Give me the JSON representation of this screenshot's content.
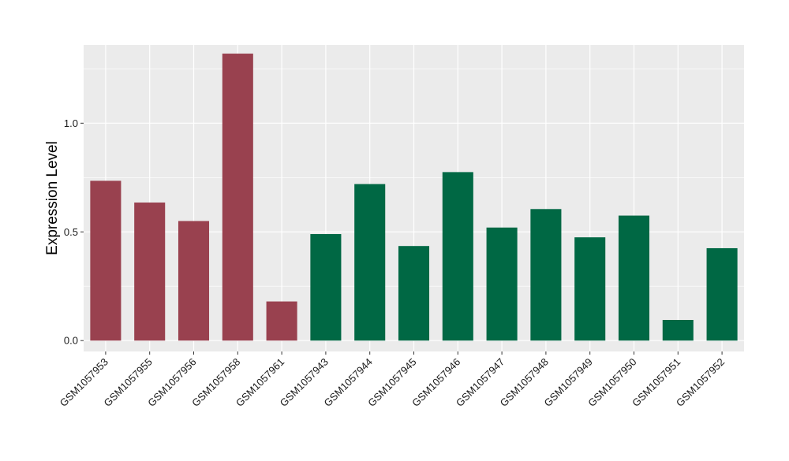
{
  "chart_data": {
    "type": "bar",
    "title": "",
    "xlabel": "",
    "ylabel": "Expression Level",
    "ylim": [
      -0.05,
      1.36
    ],
    "yticks": [
      0.0,
      0.5,
      1.0
    ],
    "ytick_labels": [
      "0.0",
      "0.5",
      "1.0"
    ],
    "grid": true,
    "legend": "none",
    "categories": [
      "GSM1057953",
      "GSM1057955",
      "GSM1057956",
      "GSM1057958",
      "GSM1057961",
      "GSM1057943",
      "GSM1057944",
      "GSM1057945",
      "GSM1057946",
      "GSM1057947",
      "GSM1057948",
      "GSM1057949",
      "GSM1057950",
      "GSM1057951",
      "GSM1057952"
    ],
    "values": [
      0.735,
      0.635,
      0.55,
      1.32,
      0.18,
      0.49,
      0.72,
      0.435,
      0.775,
      0.52,
      0.605,
      0.475,
      0.575,
      0.095,
      0.425
    ],
    "groups": [
      0,
      0,
      0,
      0,
      0,
      1,
      1,
      1,
      1,
      1,
      1,
      1,
      1,
      1,
      1
    ],
    "group_colors": [
      "#99414f",
      "#006844"
    ],
    "panel_background": "#ebebeb",
    "grid_color": "#ffffff"
  }
}
